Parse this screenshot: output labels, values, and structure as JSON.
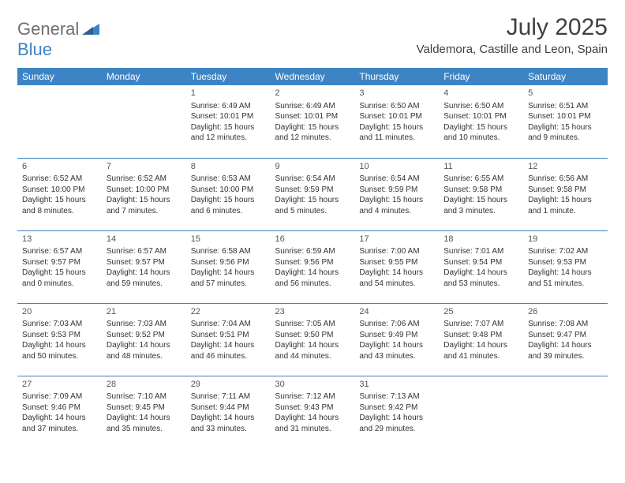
{
  "logo": {
    "part1": "General",
    "part2": "Blue"
  },
  "title": "July 2025",
  "location": "Valdemora, Castille and Leon, Spain",
  "colors": {
    "header_bg": "#3d84c4",
    "header_text": "#ffffff",
    "cell_border": "#3d84c4",
    "body_text": "#333333",
    "logo_gray": "#6d6e71",
    "logo_blue": "#3d84c4"
  },
  "weekdays": [
    "Sunday",
    "Monday",
    "Tuesday",
    "Wednesday",
    "Thursday",
    "Friday",
    "Saturday"
  ],
  "weeks": [
    [
      null,
      null,
      {
        "d": "1",
        "sr": "6:49 AM",
        "ss": "10:01 PM",
        "dl": "15 hours and 12 minutes."
      },
      {
        "d": "2",
        "sr": "6:49 AM",
        "ss": "10:01 PM",
        "dl": "15 hours and 12 minutes."
      },
      {
        "d": "3",
        "sr": "6:50 AM",
        "ss": "10:01 PM",
        "dl": "15 hours and 11 minutes."
      },
      {
        "d": "4",
        "sr": "6:50 AM",
        "ss": "10:01 PM",
        "dl": "15 hours and 10 minutes."
      },
      {
        "d": "5",
        "sr": "6:51 AM",
        "ss": "10:01 PM",
        "dl": "15 hours and 9 minutes."
      }
    ],
    [
      {
        "d": "6",
        "sr": "6:52 AM",
        "ss": "10:00 PM",
        "dl": "15 hours and 8 minutes."
      },
      {
        "d": "7",
        "sr": "6:52 AM",
        "ss": "10:00 PM",
        "dl": "15 hours and 7 minutes."
      },
      {
        "d": "8",
        "sr": "6:53 AM",
        "ss": "10:00 PM",
        "dl": "15 hours and 6 minutes."
      },
      {
        "d": "9",
        "sr": "6:54 AM",
        "ss": "9:59 PM",
        "dl": "15 hours and 5 minutes."
      },
      {
        "d": "10",
        "sr": "6:54 AM",
        "ss": "9:59 PM",
        "dl": "15 hours and 4 minutes."
      },
      {
        "d": "11",
        "sr": "6:55 AM",
        "ss": "9:58 PM",
        "dl": "15 hours and 3 minutes."
      },
      {
        "d": "12",
        "sr": "6:56 AM",
        "ss": "9:58 PM",
        "dl": "15 hours and 1 minute."
      }
    ],
    [
      {
        "d": "13",
        "sr": "6:57 AM",
        "ss": "9:57 PM",
        "dl": "15 hours and 0 minutes."
      },
      {
        "d": "14",
        "sr": "6:57 AM",
        "ss": "9:57 PM",
        "dl": "14 hours and 59 minutes."
      },
      {
        "d": "15",
        "sr": "6:58 AM",
        "ss": "9:56 PM",
        "dl": "14 hours and 57 minutes."
      },
      {
        "d": "16",
        "sr": "6:59 AM",
        "ss": "9:56 PM",
        "dl": "14 hours and 56 minutes."
      },
      {
        "d": "17",
        "sr": "7:00 AM",
        "ss": "9:55 PM",
        "dl": "14 hours and 54 minutes."
      },
      {
        "d": "18",
        "sr": "7:01 AM",
        "ss": "9:54 PM",
        "dl": "14 hours and 53 minutes."
      },
      {
        "d": "19",
        "sr": "7:02 AM",
        "ss": "9:53 PM",
        "dl": "14 hours and 51 minutes."
      }
    ],
    [
      {
        "d": "20",
        "sr": "7:03 AM",
        "ss": "9:53 PM",
        "dl": "14 hours and 50 minutes."
      },
      {
        "d": "21",
        "sr": "7:03 AM",
        "ss": "9:52 PM",
        "dl": "14 hours and 48 minutes."
      },
      {
        "d": "22",
        "sr": "7:04 AM",
        "ss": "9:51 PM",
        "dl": "14 hours and 46 minutes."
      },
      {
        "d": "23",
        "sr": "7:05 AM",
        "ss": "9:50 PM",
        "dl": "14 hours and 44 minutes."
      },
      {
        "d": "24",
        "sr": "7:06 AM",
        "ss": "9:49 PM",
        "dl": "14 hours and 43 minutes."
      },
      {
        "d": "25",
        "sr": "7:07 AM",
        "ss": "9:48 PM",
        "dl": "14 hours and 41 minutes."
      },
      {
        "d": "26",
        "sr": "7:08 AM",
        "ss": "9:47 PM",
        "dl": "14 hours and 39 minutes."
      }
    ],
    [
      {
        "d": "27",
        "sr": "7:09 AM",
        "ss": "9:46 PM",
        "dl": "14 hours and 37 minutes."
      },
      {
        "d": "28",
        "sr": "7:10 AM",
        "ss": "9:45 PM",
        "dl": "14 hours and 35 minutes."
      },
      {
        "d": "29",
        "sr": "7:11 AM",
        "ss": "9:44 PM",
        "dl": "14 hours and 33 minutes."
      },
      {
        "d": "30",
        "sr": "7:12 AM",
        "ss": "9:43 PM",
        "dl": "14 hours and 31 minutes."
      },
      {
        "d": "31",
        "sr": "7:13 AM",
        "ss": "9:42 PM",
        "dl": "14 hours and 29 minutes."
      },
      null,
      null
    ]
  ],
  "labels": {
    "sunrise": "Sunrise:",
    "sunset": "Sunset:",
    "daylight": "Daylight:"
  }
}
